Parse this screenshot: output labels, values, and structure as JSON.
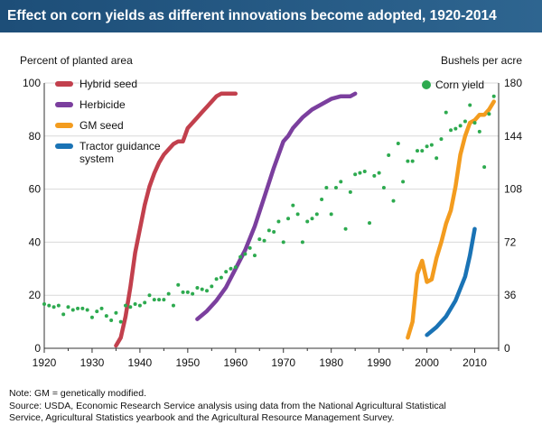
{
  "title": "Effect on corn yields as different innovations become adopted, 1920-2014",
  "footnote": "Note: GM = genetically modified.",
  "source_line1": "Source: USDA, Economic Research Service analysis using data from the National Agricultural Statistical",
  "source_line2": "Service, Agricultural Statistics yearbook and the Agricultural Resource Management Survey.",
  "colors": {
    "hybrid_seed": "#c2404d",
    "herbicide": "#7b3f9e",
    "gm_seed": "#f39c1f",
    "tractor_guidance": "#1a73b5",
    "corn_yield": "#2daa4f",
    "title_bar": "#1d4e78"
  },
  "chart_data": {
    "type": "line",
    "title": "Effect on corn yields as different innovations become adopted, 1920-2014",
    "x_range": [
      1920,
      2015
    ],
    "x_ticks": [
      1920,
      1930,
      1940,
      1950,
      1960,
      1970,
      1980,
      1990,
      2000,
      2010
    ],
    "y_left": {
      "label": "Percent of planted area",
      "range": [
        0,
        100
      ],
      "ticks": [
        0,
        20,
        40,
        60,
        80,
        100
      ]
    },
    "y_right": {
      "label": "Bushels per acre",
      "range": [
        0,
        180
      ],
      "ticks": [
        0,
        36,
        72,
        108,
        144,
        180
      ]
    },
    "legend_position": "top-left",
    "series": [
      {
        "name": "Hybrid seed",
        "axis": "left",
        "style": "line",
        "x": [
          1935,
          1936,
          1937,
          1938,
          1939,
          1940,
          1941,
          1942,
          1943,
          1944,
          1945,
          1946,
          1947,
          1948,
          1949,
          1950,
          1951,
          1952,
          1953,
          1954,
          1955,
          1956,
          1957,
          1958,
          1959,
          1960
        ],
        "y": [
          1,
          4,
          12,
          23,
          36,
          45,
          54,
          61,
          66,
          70,
          73,
          75,
          77,
          78,
          78,
          83,
          85,
          87,
          89,
          91,
          93,
          95,
          96,
          96,
          96,
          96
        ]
      },
      {
        "name": "Herbicide",
        "axis": "left",
        "style": "line",
        "x": [
          1952,
          1954,
          1956,
          1958,
          1960,
          1962,
          1964,
          1966,
          1968,
          1970,
          1971,
          1972,
          1974,
          1976,
          1978,
          1980,
          1982,
          1984,
          1985
        ],
        "y": [
          11,
          14,
          18,
          23,
          30,
          37,
          46,
          57,
          68,
          78,
          80,
          83,
          87,
          90,
          92,
          94,
          95,
          95,
          96
        ]
      },
      {
        "name": "GM seed",
        "axis": "left",
        "style": "line",
        "x": [
          1996,
          1997,
          1998,
          1999,
          2000,
          2001,
          2002,
          2003,
          2004,
          2005,
          2006,
          2007,
          2008,
          2009,
          2010,
          2011,
          2012,
          2013,
          2014
        ],
        "y": [
          4,
          10,
          28,
          33,
          25,
          26,
          34,
          40,
          47,
          52,
          61,
          73,
          80,
          85,
          86,
          88,
          88,
          90,
          93
        ]
      },
      {
        "name": "Tractor guidance system",
        "axis": "left",
        "style": "line",
        "x": [
          2000,
          2002,
          2004,
          2006,
          2008,
          2009,
          2010
        ],
        "y": [
          5,
          8,
          12,
          18,
          27,
          35,
          45
        ]
      },
      {
        "name": "Corn yield",
        "axis": "right",
        "style": "scatter",
        "x": [
          1920,
          1921,
          1922,
          1923,
          1924,
          1925,
          1926,
          1927,
          1928,
          1929,
          1930,
          1931,
          1932,
          1933,
          1934,
          1935,
          1936,
          1937,
          1938,
          1939,
          1940,
          1941,
          1942,
          1943,
          1944,
          1945,
          1946,
          1947,
          1948,
          1949,
          1950,
          1951,
          1952,
          1953,
          1954,
          1955,
          1956,
          1957,
          1958,
          1959,
          1960,
          1961,
          1962,
          1963,
          1964,
          1965,
          1966,
          1967,
          1968,
          1969,
          1970,
          1971,
          1972,
          1973,
          1974,
          1975,
          1976,
          1977,
          1978,
          1979,
          1980,
          1981,
          1982,
          1983,
          1984,
          1985,
          1986,
          1987,
          1988,
          1989,
          1990,
          1991,
          1992,
          1993,
          1994,
          1995,
          1996,
          1997,
          1998,
          1999,
          2000,
          2001,
          2002,
          2003,
          2004,
          2005,
          2006,
          2007,
          2008,
          2009,
          2010,
          2011,
          2012,
          2013,
          2014
        ],
        "y": [
          30,
          29,
          28,
          29,
          23,
          28,
          26,
          27,
          27,
          26,
          21,
          25,
          27,
          22,
          19,
          24,
          18,
          29,
          28,
          30,
          29,
          31,
          36,
          33,
          33,
          33,
          37,
          29,
          43,
          38,
          38,
          37,
          41,
          40,
          39,
          42,
          47,
          48,
          52,
          54,
          55,
          62,
          64,
          68,
          63,
          74,
          73,
          80,
          79,
          86,
          72,
          88,
          97,
          91,
          72,
          86,
          88,
          91,
          101,
          109,
          91,
          109,
          113,
          81,
          106,
          118,
          119,
          120,
          85,
          117,
          119,
          109,
          131,
          100,
          139,
          113,
          127,
          127,
          134,
          134,
          137,
          138,
          129,
          142,
          160,
          148,
          149,
          151,
          154,
          165,
          153,
          147,
          123,
          159,
          171
        ]
      }
    ]
  }
}
